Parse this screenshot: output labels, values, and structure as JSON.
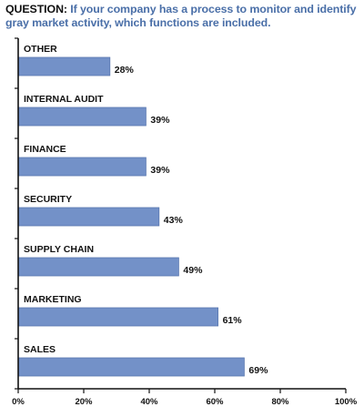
{
  "question": {
    "label": "QUESTION:",
    "text": " If your company has a process to monitor and identify gray market activity, which functions are included."
  },
  "chart_data": {
    "type": "bar",
    "orientation": "horizontal",
    "title": "",
    "xlabel": "",
    "ylabel": "",
    "categories": [
      "OTHER",
      "INTERNAL AUDIT",
      "FINANCE",
      "SECURITY",
      "SUPPLY CHAIN",
      "MARKETING",
      "SALES"
    ],
    "values": [
      28,
      39,
      39,
      43,
      49,
      61,
      69
    ],
    "value_labels": [
      "28%",
      "39%",
      "39%",
      "43%",
      "49%",
      "61%",
      "69%"
    ],
    "xlim": [
      0,
      100
    ],
    "x_ticks": [
      0,
      20,
      40,
      60,
      80,
      100
    ],
    "x_tick_labels": [
      "0%",
      "20%",
      "40%",
      "60%",
      "80%",
      "100%"
    ],
    "grid": false,
    "legend": "none",
    "bar_color": "#7391c8",
    "bar_edge_color": "#5a78b0",
    "question_color": "#4a6fa8"
  }
}
